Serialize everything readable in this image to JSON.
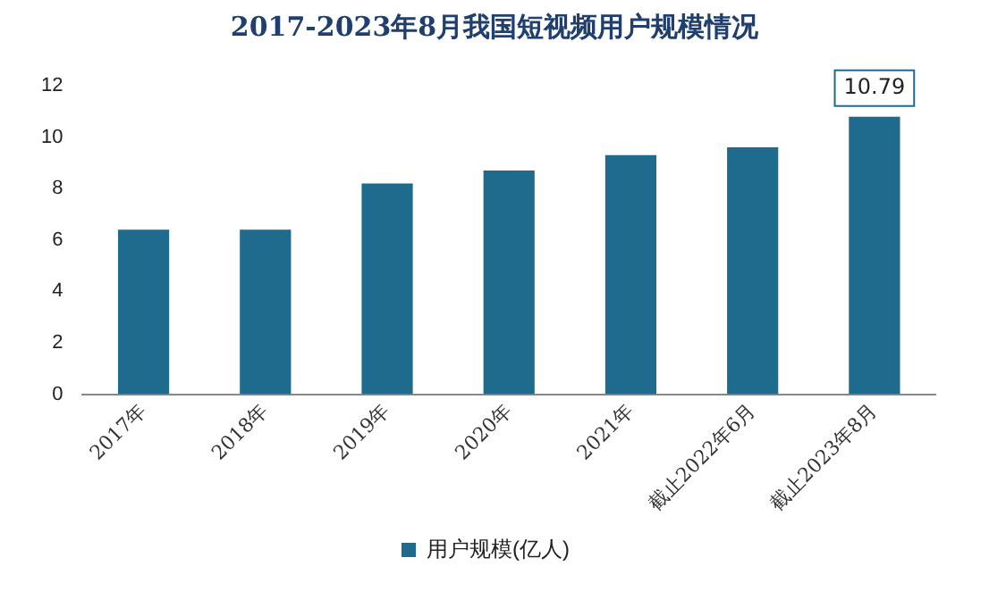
{
  "chart_data": {
    "type": "bar",
    "title": "2017-2023年8月我国短视频用户规模情况",
    "categories": [
      "2017年",
      "2018年",
      "2019年",
      "2020年",
      "2021年",
      "截止2022年6月",
      "截止2023年8月"
    ],
    "series": [
      {
        "name": "用户规模(亿人)",
        "color": "#1f6b8e",
        "values": [
          6.4,
          6.4,
          8.2,
          8.7,
          9.3,
          9.6,
          10.79
        ],
        "value_labels": [
          null,
          null,
          null,
          null,
          null,
          null,
          "10.79"
        ]
      }
    ],
    "ylim": [
      0,
      12
    ],
    "yticks": [
      0,
      2,
      4,
      6,
      8,
      10,
      12
    ],
    "grid": false,
    "legend": "bottom"
  }
}
